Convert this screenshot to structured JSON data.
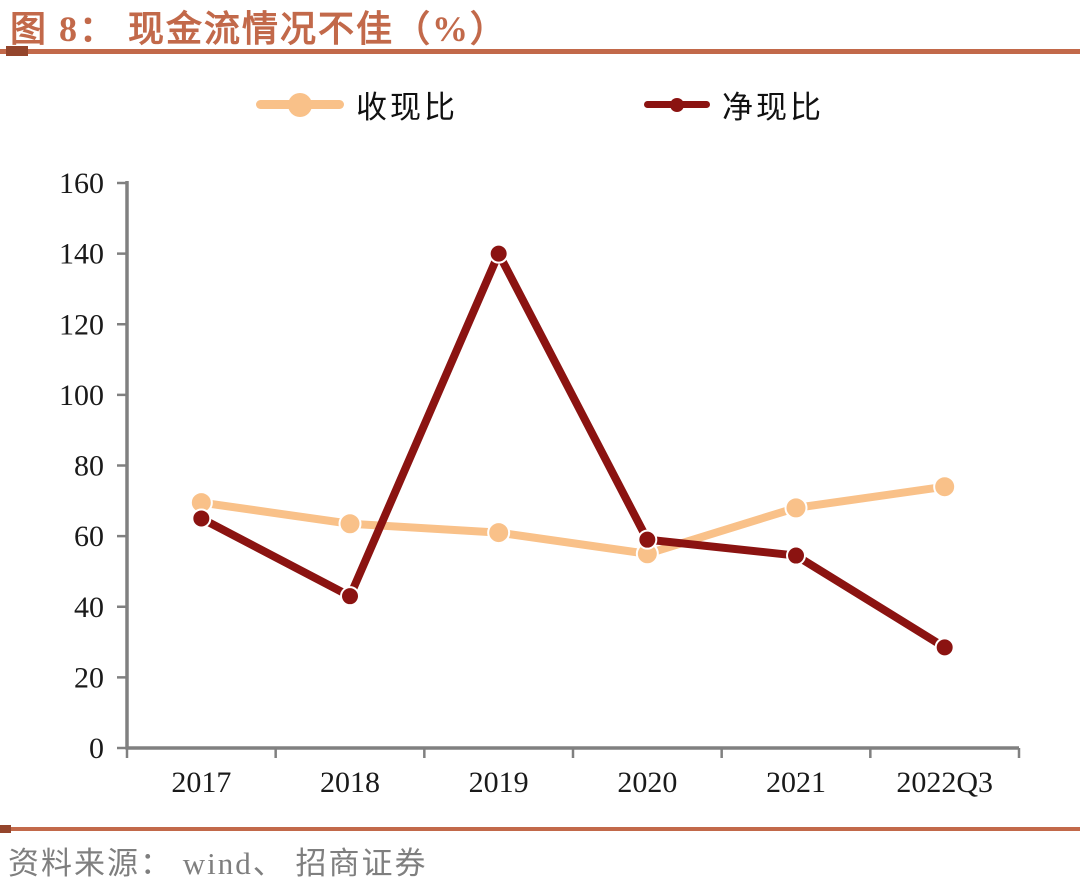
{
  "title": {
    "label": "图 8：",
    "text": "图 8：  现金流情况不佳（%）"
  },
  "chart_data": {
    "type": "line",
    "title": "现金流情况不佳（%）",
    "categories": [
      "2017",
      "2018",
      "2019",
      "2020",
      "2021",
      "2022Q3"
    ],
    "series": [
      {
        "name": "收现比",
        "color": "#F9C189",
        "values": [
          69.5,
          63.5,
          61,
          55,
          68,
          74
        ]
      },
      {
        "name": "净现比",
        "color": "#8B1311",
        "values": [
          65,
          43,
          140,
          59,
          54.5,
          28.5
        ]
      }
    ],
    "xlabel": "",
    "ylabel": "",
    "ylim": [
      0,
      160
    ],
    "ytick_step": 20,
    "yticks": [
      0,
      20,
      40,
      60,
      80,
      100,
      120,
      140,
      160
    ],
    "grid": false,
    "legend_position": "top"
  },
  "footer": {
    "source": "资料来源： wind、 招商证券"
  },
  "colors": {
    "accent": "#C2694A",
    "accent_dark": "#94452C",
    "axis": "#808080",
    "tick_label": "#1A1A1A",
    "source_text": "#7F7F7F",
    "series_light": "#F9C189",
    "series_dark": "#8B1311"
  }
}
